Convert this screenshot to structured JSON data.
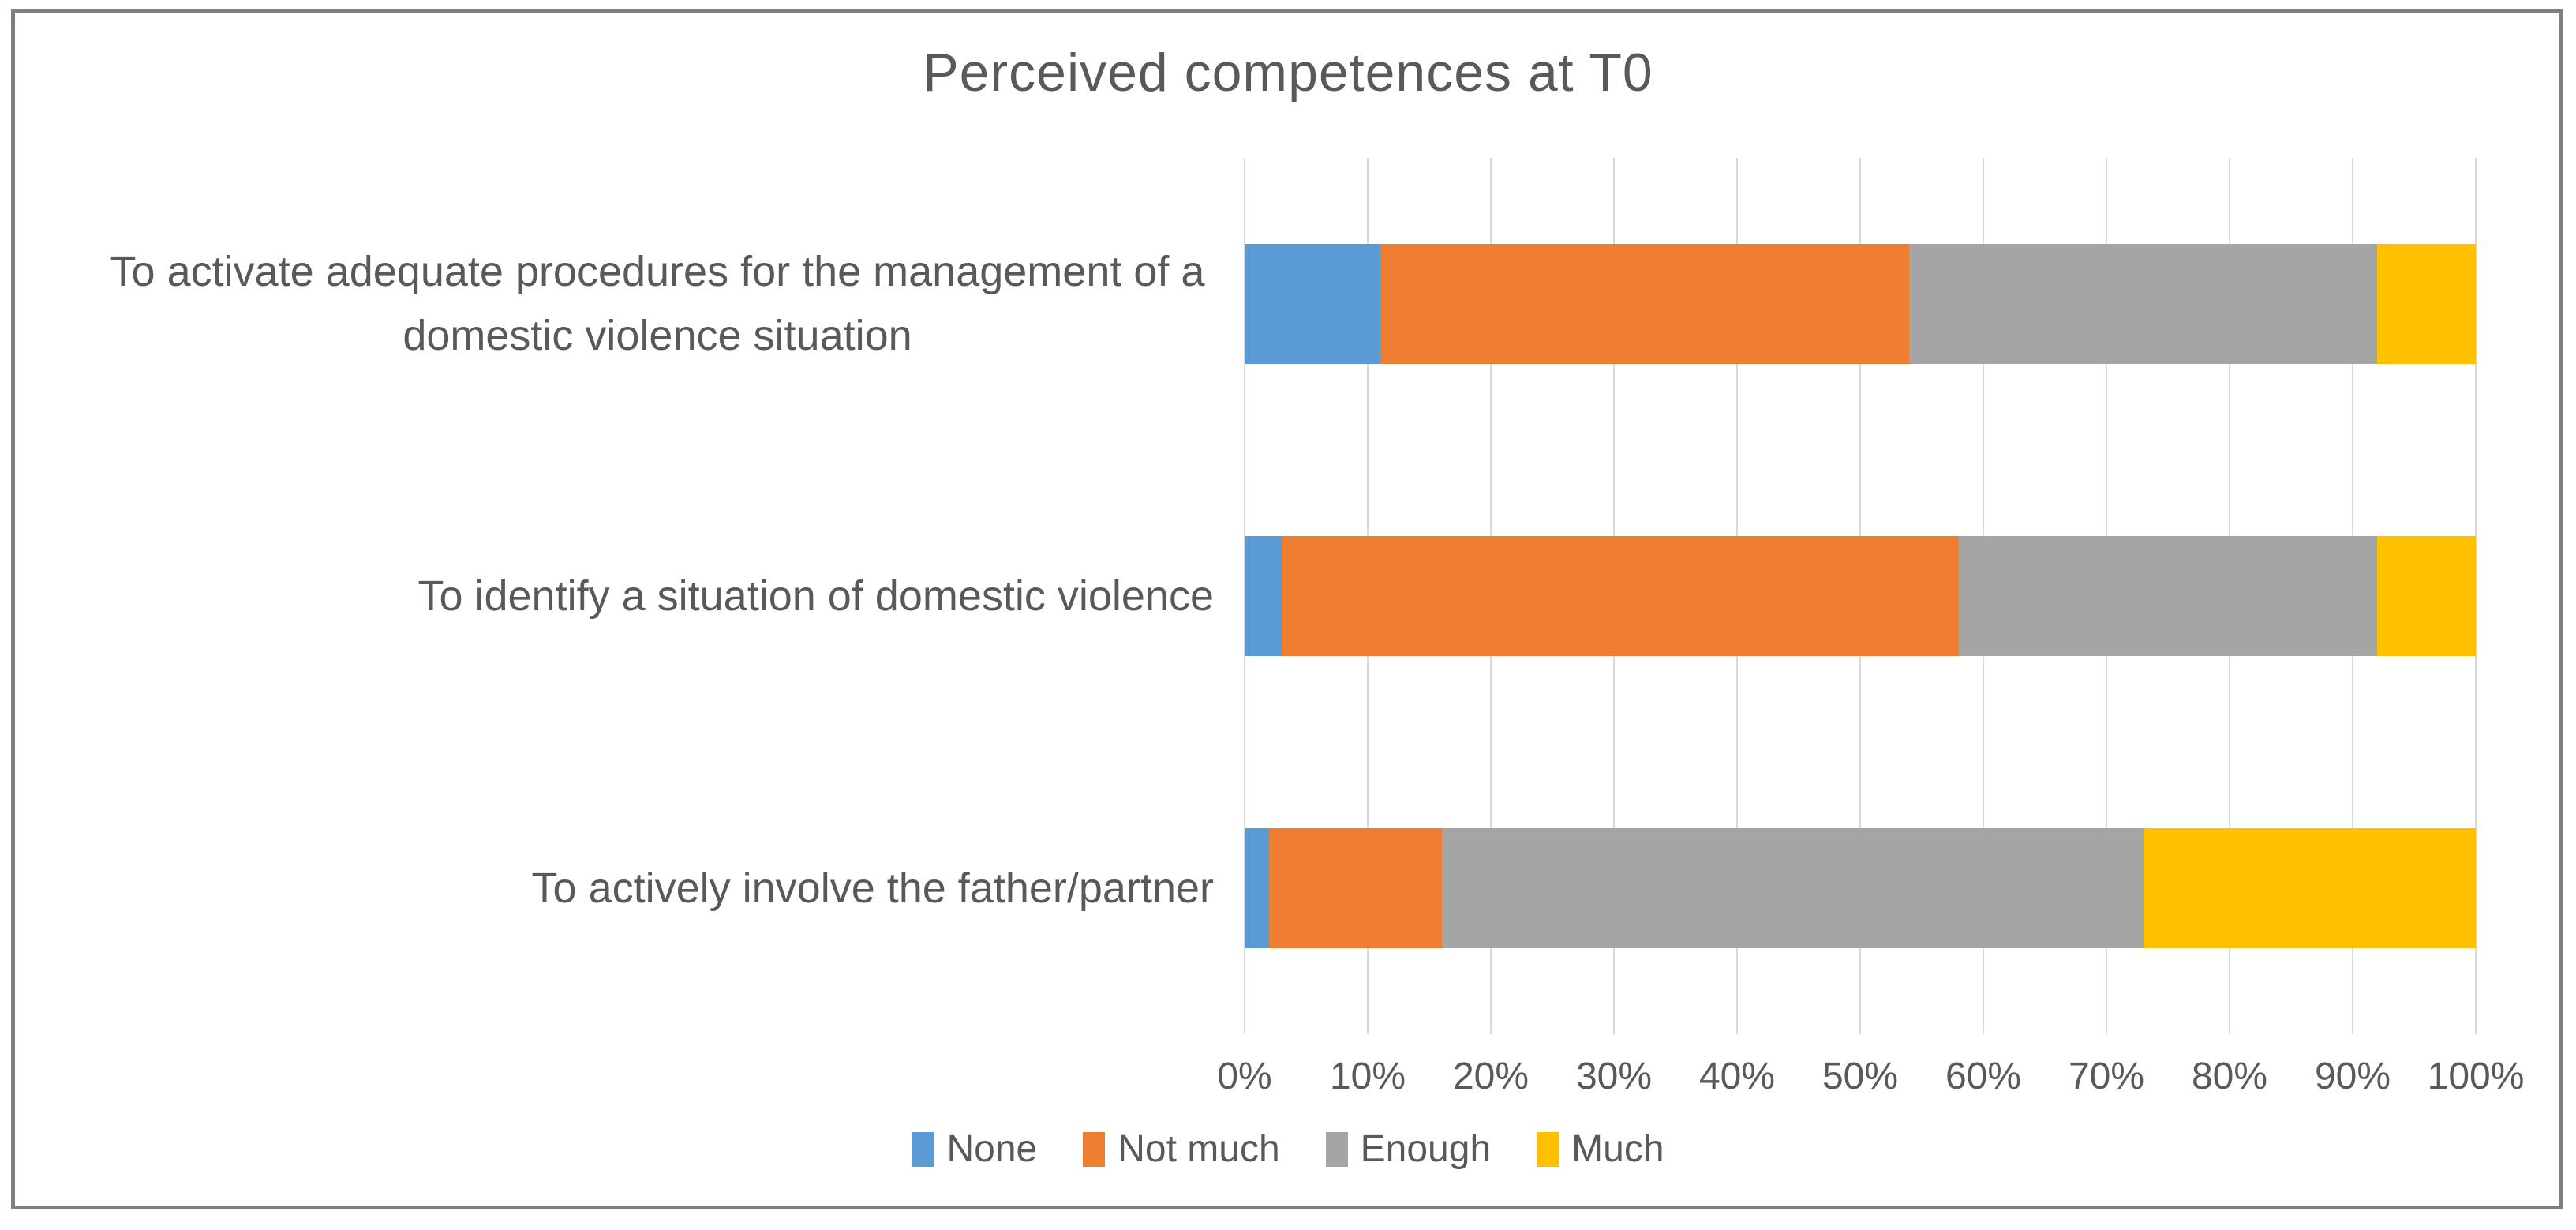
{
  "chart_data": {
    "type": "bar",
    "stacked": true,
    "orientation": "horizontal",
    "title": "Perceived competences at T0",
    "categories": [
      "To activate adequate procedures for the management of a domestic violence situation",
      "To identify a situation of domestic violence",
      "To actively involve the father/partner"
    ],
    "series": [
      {
        "name": "None",
        "color": "#5B9BD5",
        "values": [
          11,
          3,
          2
        ]
      },
      {
        "name": "Not much",
        "color": "#ED7D31",
        "values": [
          43,
          55,
          14
        ]
      },
      {
        "name": "Enough",
        "color": "#A5A5A5",
        "values": [
          38,
          34,
          57
        ]
      },
      {
        "name": "Much",
        "color": "#FFC000",
        "values": [
          8,
          8,
          27
        ]
      }
    ],
    "x_axis": {
      "min": 0,
      "max": 100,
      "tick_step": 10,
      "tick_labels": [
        "0%",
        "10%",
        "20%",
        "30%",
        "40%",
        "50%",
        "60%",
        "70%",
        "80%",
        "90%",
        "100%"
      ]
    },
    "legend": {
      "position": "bottom",
      "entries": [
        "None",
        "Not much",
        "Enough",
        "Much"
      ]
    },
    "grid": true,
    "colors": {
      "gridline": "#D9D9D9",
      "text": "#595959",
      "frame_border": "#7F7F7F",
      "background": "#FFFFFF"
    }
  }
}
